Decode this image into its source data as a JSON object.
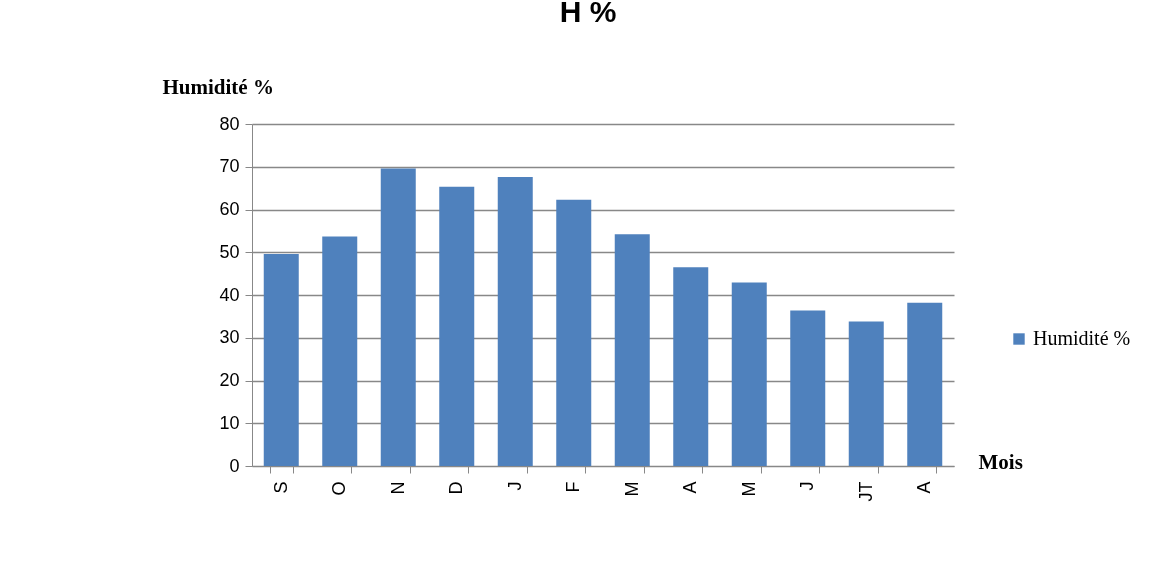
{
  "chart_data": {
    "type": "bar",
    "title": "H %",
    "xlabel": "Mois",
    "ylabel": "Humidité %",
    "categories": [
      "S",
      "O",
      "N",
      "D",
      "J",
      "F",
      "M",
      "A",
      "M",
      "J",
      "JT",
      "A"
    ],
    "series": [
      {
        "name": "Humidité %",
        "color": "#4f81bd",
        "values": [
          49.6,
          53.7,
          69.6,
          65.3,
          67.6,
          62.3,
          54.2,
          46.5,
          42.9,
          36.4,
          33.8,
          38.2
        ]
      }
    ],
    "ylim": [
      0,
      80
    ],
    "yticks": [
      0,
      10,
      20,
      30,
      40,
      50,
      60,
      70,
      80
    ],
    "grid": "y",
    "legend": "right"
  }
}
